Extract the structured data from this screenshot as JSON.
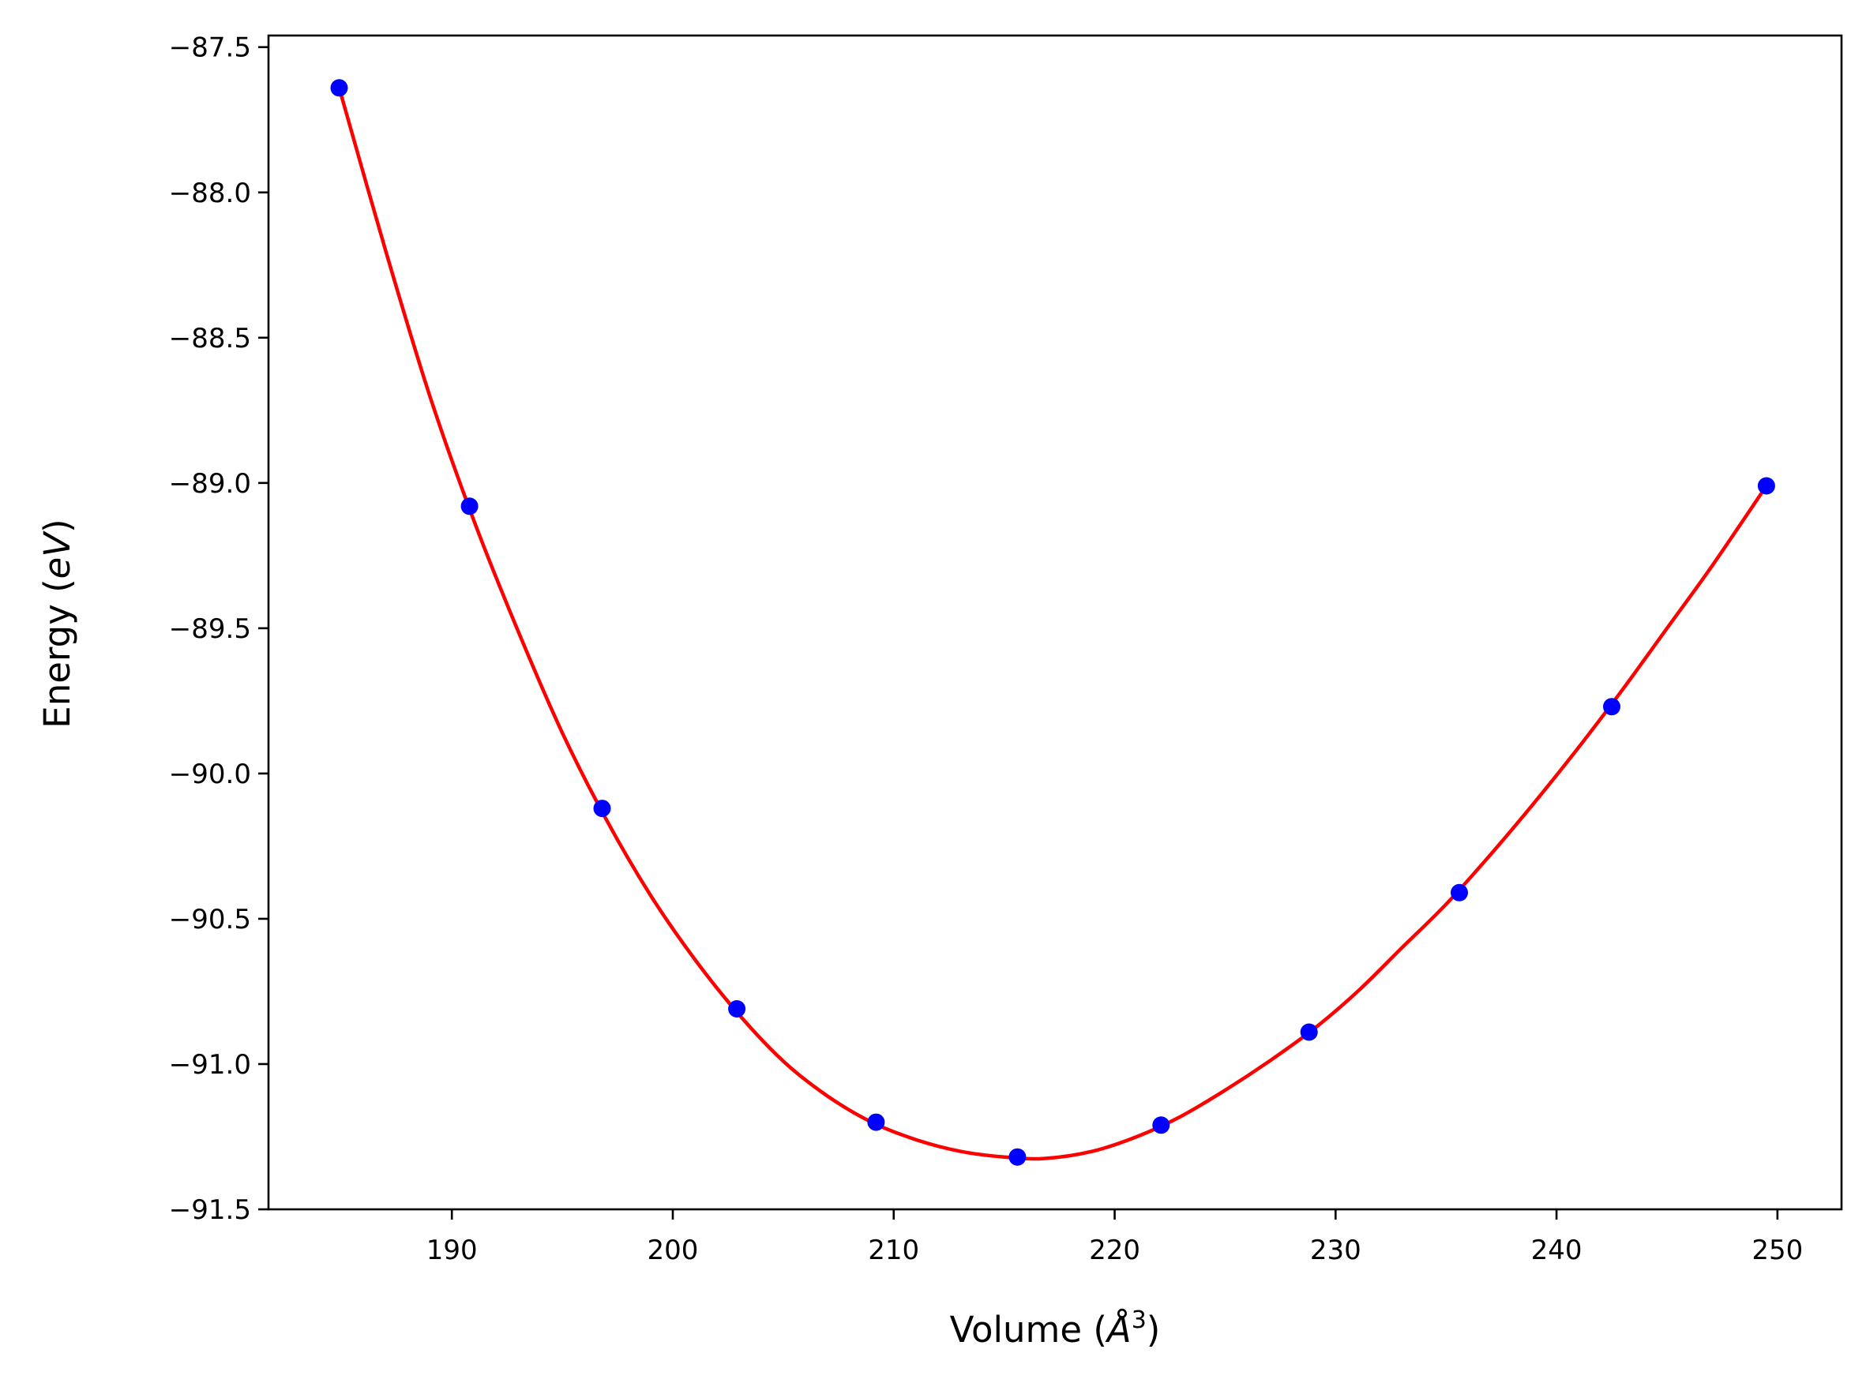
{
  "chart_data": {
    "type": "scatter",
    "title": "",
    "xlabel": {
      "prefix": "Volume (",
      "unit": "Å",
      "power": "3",
      "suffix": ")"
    },
    "ylabel": {
      "prefix": "Energy (",
      "unit": "eV",
      "suffix": ")"
    },
    "xlim": [
      181.7,
      252.9
    ],
    "ylim": [
      -91.5,
      -87.46
    ],
    "xticks": [
      190,
      200,
      210,
      220,
      230,
      240,
      250
    ],
    "yticks": [
      -91.5,
      -91.0,
      -90.5,
      -90.0,
      -89.5,
      -89.0,
      -88.5,
      -88.0,
      -87.5
    ],
    "ytick_labels": [
      "−91.5",
      "−91.0",
      "−90.5",
      "−90.0",
      "−89.5",
      "−89.0",
      "−88.5",
      "−88.0",
      "−87.5"
    ],
    "grid": false,
    "series": [
      {
        "kind": "points",
        "color": "#0000ff",
        "x": [
          184.9,
          190.8,
          196.8,
          202.9,
          209.2,
          215.6,
          222.1,
          228.8,
          235.6,
          242.5,
          249.5
        ],
        "y": [
          -87.64,
          -89.08,
          -90.12,
          -90.81,
          -91.2,
          -91.32,
          -91.21,
          -90.89,
          -90.41,
          -89.77,
          -89.01
        ]
      },
      {
        "kind": "fit-curve",
        "color": "#ff0000",
        "x": [
          184.9,
          187.0,
          189.0,
          191.0,
          193.0,
          195.0,
          197.0,
          199.0,
          201.0,
          203.0,
          205.0,
          207.0,
          209.0,
          211.0,
          213.0,
          215.0,
          216.8,
          219.0,
          221.0,
          223.0,
          225.0,
          227.0,
          229.0,
          231.0,
          233.0,
          235.0,
          237.0,
          239.0,
          241.0,
          243.0,
          245.0,
          247.0,
          249.5
        ],
        "y": [
          -87.64,
          -88.2,
          -88.7,
          -89.13,
          -89.51,
          -89.86,
          -90.16,
          -90.42,
          -90.64,
          -90.83,
          -90.99,
          -91.11,
          -91.2,
          -91.26,
          -91.3,
          -91.32,
          -91.325,
          -91.3,
          -91.25,
          -91.18,
          -91.09,
          -90.99,
          -90.88,
          -90.75,
          -90.6,
          -90.45,
          -90.28,
          -90.1,
          -89.91,
          -89.71,
          -89.5,
          -89.29,
          -89.01
        ]
      }
    ]
  }
}
